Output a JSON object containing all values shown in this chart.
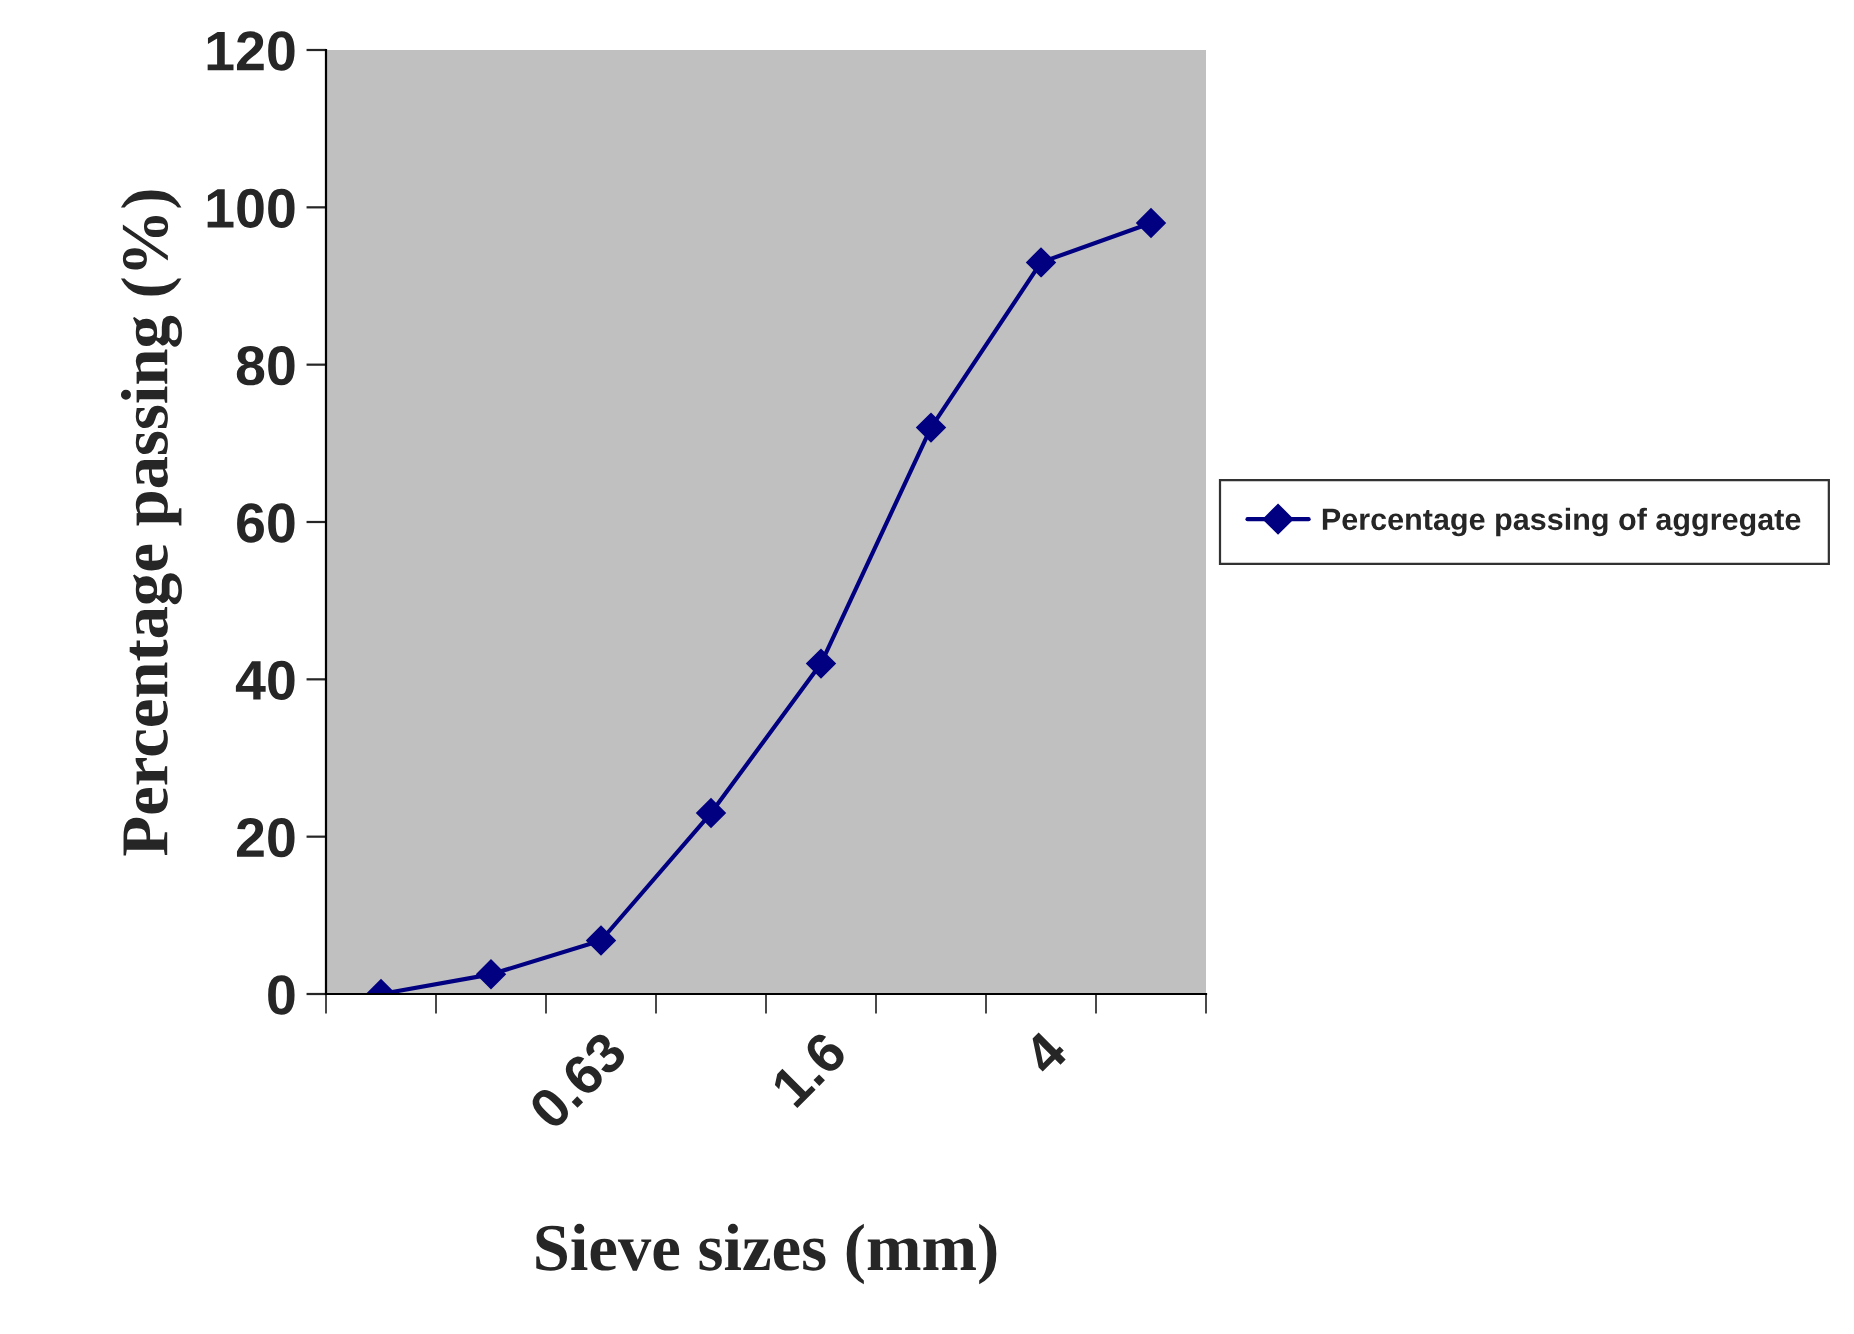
{
  "chart_data": {
    "type": "line",
    "xlabel": "Sieve sizes (mm)",
    "ylabel": "Percentage passing (%)",
    "categories": [
      null,
      null,
      "0.63",
      null,
      "1.6",
      null,
      "4",
      null
    ],
    "series": [
      {
        "name": "Percentage passing of aggregate",
        "color": "#000080",
        "values": [
          0,
          2.5,
          6.8,
          23,
          42,
          72,
          93,
          98
        ]
      }
    ],
    "ylim": [
      0,
      120
    ],
    "yticks": [
      0,
      20,
      40,
      60,
      80,
      100,
      120
    ],
    "grid": false,
    "legend": "right",
    "marker": "diamond",
    "line_style": "solid"
  }
}
